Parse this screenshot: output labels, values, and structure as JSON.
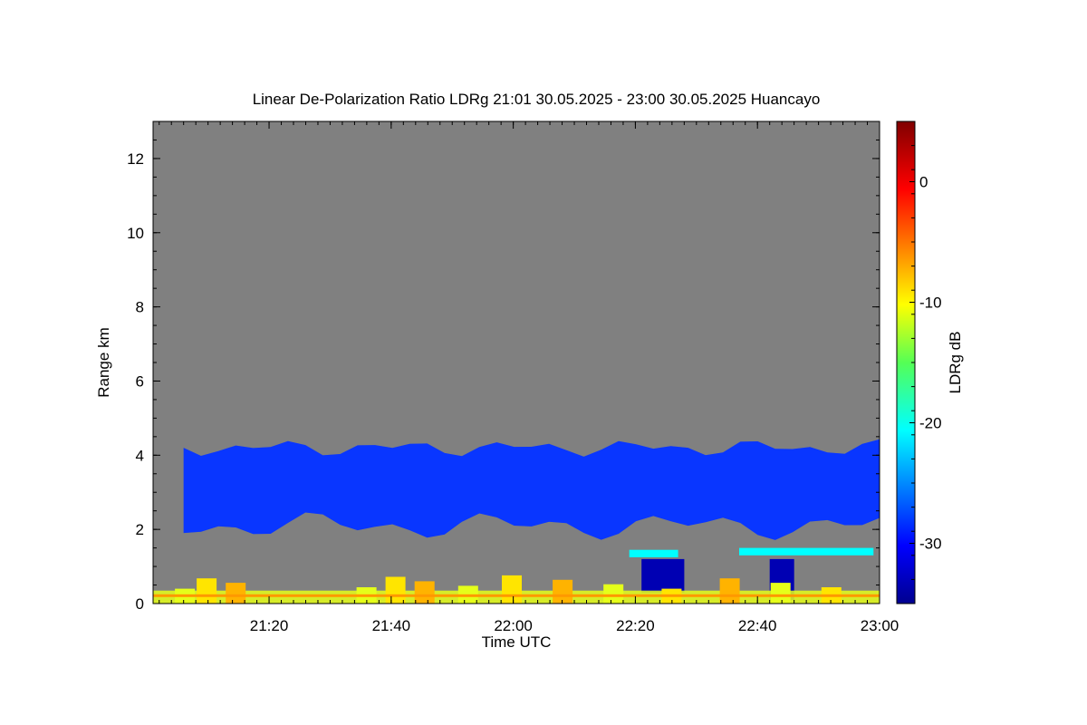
{
  "chart_data": {
    "type": "heatmap",
    "title": "Linear De-Polarization Ratio LDRg   21:01 30.05.2025 - 23:00 30.05.2025 Huancayo",
    "xlabel": "Time UTC",
    "ylabel": "Range km",
    "colorbar_label": "LDRg dB",
    "x_range": [
      "21:01",
      "23:00"
    ],
    "x_ticks": [
      "21:20",
      "21:40",
      "22:00",
      "22:20",
      "22:40",
      "23:00"
    ],
    "y_range": [
      0,
      13
    ],
    "y_ticks": [
      "0",
      "2",
      "4",
      "6",
      "8",
      "10",
      "12"
    ],
    "colorbar_range": [
      -35,
      5
    ],
    "colorbar_ticks": [
      "0",
      "-10",
      "-20",
      "-30"
    ],
    "colormap": "jet",
    "background_color": "#808080",
    "features": [
      {
        "t_start": "21:06",
        "t_end": "23:00",
        "base_km": 2.1,
        "top_km": 4.2,
        "ldr_db": -28
      },
      {
        "t_start": "22:19",
        "t_end": "22:27",
        "base_km": 1.25,
        "top_km": 1.45,
        "ldr_db": -20
      },
      {
        "t_start": "22:37",
        "t_end": "22:59",
        "base_km": 1.3,
        "top_km": 1.5,
        "ldr_db": -20
      },
      {
        "t_start": "22:21",
        "t_end": "22:28",
        "base_km": 0.3,
        "top_km": 1.2,
        "ldr_db": -33
      },
      {
        "t_start": "22:42",
        "t_end": "22:46",
        "base_km": 0.1,
        "top_km": 1.2,
        "ldr_db": -33
      },
      {
        "t_start": "21:01",
        "t_end": "23:00",
        "base_km": 0.0,
        "top_km": 0.8,
        "ldr_db": -11
      }
    ]
  }
}
